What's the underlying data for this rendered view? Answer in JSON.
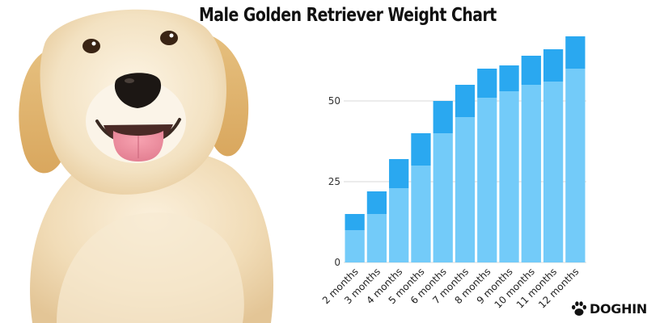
{
  "chart_data": {
    "type": "bar",
    "stacked": true,
    "title": "Male Golden Retriever Weight Chart",
    "xlabel": "",
    "ylabel": "",
    "categories": [
      "2 months",
      "3 months",
      "4 months",
      "5 months",
      "6 months",
      "7 months",
      "8 months",
      "9 months",
      "10 months",
      "11 months",
      "12 months"
    ],
    "series": [
      {
        "values": [
          10,
          15,
          23,
          30,
          40,
          45,
          51,
          53,
          55,
          56,
          60
        ],
        "color": "#73cbf9"
      },
      {
        "values": [
          5,
          7,
          9,
          10,
          10,
          10,
          9,
          8,
          9,
          10,
          10
        ],
        "color": "#2aa8f0"
      }
    ],
    "yticks": [
      0,
      25,
      50
    ],
    "ylim": [
      0,
      70
    ],
    "grid": true,
    "legend": "none"
  },
  "brand": {
    "name": "DOGHINT",
    "icon": "paw-icon"
  },
  "image": {
    "subject": "golden-retriever-puppy"
  },
  "colors": {
    "bar_light": "#73cbf9",
    "bar_dark": "#2aa8f0",
    "grid": "#d9d9d9",
    "text": "#111111"
  }
}
